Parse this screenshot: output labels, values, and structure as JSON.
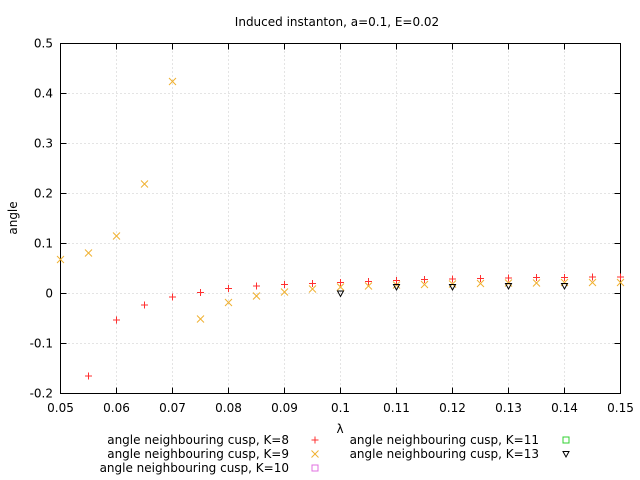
{
  "chart_data": {
    "type": "scatter",
    "title": "Induced instanton, a=0.1, E=0.02",
    "xlabel": "λ",
    "ylabel": "angle",
    "xlim": [
      0.05,
      0.15
    ],
    "ylim": [
      -0.2,
      0.5
    ],
    "grid": true,
    "legend_position": "bottom",
    "x_ticks": [
      "0.05",
      "0.06",
      "0.07",
      "0.08",
      "0.09",
      "0.1",
      "0.11",
      "0.12",
      "0.13",
      "0.14",
      "0.15"
    ],
    "y_ticks": [
      "-0.2",
      "-0.1",
      "0",
      "0.1",
      "0.2",
      "0.3",
      "0.4",
      "0.5"
    ],
    "series": [
      {
        "name": "angle neighbouring cusp, K=8",
        "marker": "plus",
        "color": "#ff3030",
        "points": [
          [
            0.055,
            -0.165
          ],
          [
            0.06,
            -0.053
          ],
          [
            0.065,
            -0.023
          ],
          [
            0.07,
            -0.007
          ],
          [
            0.075,
            0.002
          ],
          [
            0.08,
            0.01
          ],
          [
            0.085,
            0.015
          ],
          [
            0.09,
            0.018
          ],
          [
            0.095,
            0.02
          ],
          [
            0.1,
            0.022
          ],
          [
            0.105,
            0.024
          ],
          [
            0.11,
            0.026
          ],
          [
            0.115,
            0.028
          ],
          [
            0.12,
            0.029
          ],
          [
            0.125,
            0.03
          ],
          [
            0.13,
            0.031
          ],
          [
            0.135,
            0.032
          ],
          [
            0.14,
            0.032
          ],
          [
            0.145,
            0.033
          ],
          [
            0.15,
            0.033
          ]
        ]
      },
      {
        "name": "angle neighbouring cusp, K=9",
        "marker": "cross",
        "color": "#f0b030",
        "points": [
          [
            0.05,
            0.068
          ],
          [
            0.055,
            0.081
          ],
          [
            0.06,
            0.115
          ],
          [
            0.065,
            0.219
          ],
          [
            0.07,
            0.424
          ],
          [
            0.075,
            -0.051
          ],
          [
            0.08,
            -0.018
          ],
          [
            0.085,
            -0.005
          ],
          [
            0.09,
            0.003
          ],
          [
            0.095,
            0.009
          ],
          [
            0.1,
            0.013
          ],
          [
            0.105,
            0.015
          ],
          [
            0.11,
            0.017
          ],
          [
            0.115,
            0.018
          ],
          [
            0.12,
            0.019
          ],
          [
            0.125,
            0.02
          ],
          [
            0.13,
            0.021
          ],
          [
            0.135,
            0.021
          ],
          [
            0.14,
            0.022
          ],
          [
            0.145,
            0.022
          ],
          [
            0.15,
            0.022
          ]
        ]
      },
      {
        "name": "angle neighbouring cusp, K=10",
        "marker": "square",
        "color": "#e070e0",
        "points": []
      },
      {
        "name": "angle neighbouring cusp, K=11",
        "marker": "square",
        "color": "#30d030",
        "points": []
      },
      {
        "name": "angle neighbouring cusp, K=13",
        "marker": "triangle-down",
        "color": "#000000",
        "points": [
          [
            0.1,
            0.0
          ],
          [
            0.11,
            0.013
          ],
          [
            0.12,
            0.013
          ],
          [
            0.13,
            0.015
          ],
          [
            0.14,
            0.015
          ]
        ]
      }
    ]
  }
}
